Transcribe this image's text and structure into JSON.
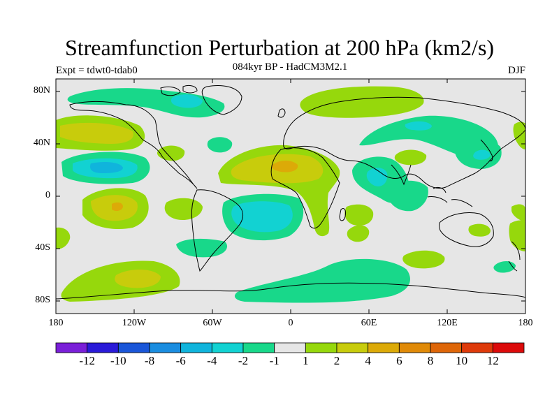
{
  "figure": {
    "title": "Streamfunction Perturbation at 200 hPa (km2/s)",
    "subtitle": "084kyr BP - HadCM3M2.1",
    "left_label": "Expt = tdwt0-tdab0",
    "right_label": "DJF"
  },
  "axes": {
    "lat_ticks": [
      "80N",
      "40N",
      "0",
      "40S",
      "80S"
    ],
    "lon_ticks": [
      "180",
      "120W",
      "60W",
      "0",
      "60E",
      "120E",
      "180"
    ]
  },
  "colorbar": {
    "colors": [
      "#7a1fd8",
      "#2a1ad8",
      "#1a56d8",
      "#1a8de0",
      "#10b4dc",
      "#12d2d2",
      "#18d88a",
      "#e6e6e6",
      "#96d80c",
      "#c8cc0c",
      "#dcaa08",
      "#e08a08",
      "#de6608",
      "#de3a0a",
      "#dc0a0a"
    ],
    "labels": [
      "-12",
      "-10",
      "-8",
      "-6",
      "-4",
      "-2",
      "-1",
      "1",
      "2",
      "4",
      "6",
      "8",
      "10",
      "12"
    ]
  },
  "chart_data": {
    "type": "heatmap",
    "title": "Streamfunction Perturbation at 200 hPa (km2/s)",
    "subtitle": "084kyr BP - HadCM3M2.1",
    "experiment": "Expt = tdwt0-tdab0",
    "season": "DJF",
    "projection": "cylindrical equidistant",
    "lon_range": [
      -180,
      180
    ],
    "lat_range": [
      -90,
      90
    ],
    "contour_levels": [
      -12,
      -10,
      -8,
      -6,
      -4,
      -2,
      -1,
      1,
      2,
      4,
      6,
      8,
      10,
      12
    ],
    "features": [
      {
        "name": "north-pacific-positive",
        "lon": -148,
        "lat": 40,
        "value": 5
      },
      {
        "name": "central-pacific-negative",
        "lon": -145,
        "lat": 22,
        "value": -4
      },
      {
        "name": "south-pacific-positive",
        "lon": -135,
        "lat": -8,
        "value": 6
      },
      {
        "name": "south-pacific-high-lat-positive",
        "lon": -130,
        "lat": -62,
        "value": 4
      },
      {
        "name": "north-atlantic-africa-positive",
        "lon": -5,
        "lat": 22,
        "value": 6
      },
      {
        "name": "south-atlantic-negative",
        "lon": -25,
        "lat": -17,
        "value": -4
      },
      {
        "name": "southern-ocean-negative",
        "lon": 20,
        "lat": -65,
        "value": -2
      },
      {
        "name": "east-africa-negative",
        "lon": 63,
        "lat": 12,
        "value": -3
      },
      {
        "name": "east-asia-negative",
        "lon": 95,
        "lat": 50,
        "value": -2
      },
      {
        "name": "north-america-arctic-negative",
        "lon": -90,
        "lat": 72,
        "value": -2
      },
      {
        "name": "arctic-europe-positive",
        "lon": 50,
        "lat": 72,
        "value": 2
      },
      {
        "name": "indian-ocean-positive",
        "lon": 55,
        "lat": -18,
        "value": 2
      }
    ]
  }
}
